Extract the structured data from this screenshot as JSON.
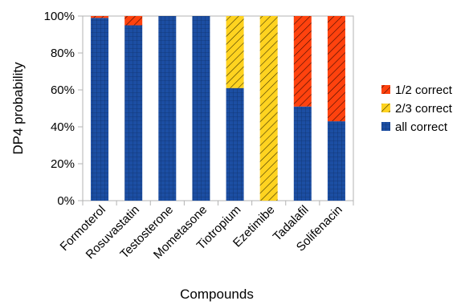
{
  "chart_data": {
    "type": "bar",
    "stacked": true,
    "percent": true,
    "title": "",
    "xlabel": "Compounds",
    "ylabel": "DP4 probability",
    "ylim": [
      0,
      100
    ],
    "yticks": [
      "0%",
      "20%",
      "40%",
      "60%",
      "80%",
      "100%"
    ],
    "grid": false,
    "legend_position": "right",
    "categories": [
      "Formoterol",
      "Rosuvastatin",
      "Testosterone",
      "Mometasone",
      "Tiotropium",
      "Ezetimibe",
      "Tadalafil",
      "Solifenacin"
    ],
    "series": [
      {
        "name": "all correct",
        "values": [
          99,
          95,
          100,
          100,
          61,
          0,
          51,
          43
        ],
        "color": "#1c4ea3",
        "pattern": "grid"
      },
      {
        "name": "2/3 correct",
        "values": [
          0,
          0,
          0,
          0,
          39,
          100,
          0,
          0
        ],
        "color": "#ffd320",
        "pattern": "diagonal"
      },
      {
        "name": "1/2 correct",
        "values": [
          1,
          5,
          0,
          0,
          0,
          0,
          49,
          57
        ],
        "color": "#ff420e",
        "pattern": "diagonal"
      }
    ],
    "legend_order": [
      "1/2 correct",
      "2/3 correct",
      "all correct"
    ]
  }
}
